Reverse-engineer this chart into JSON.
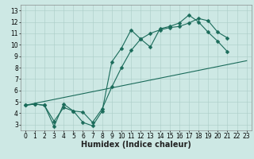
{
  "xlabel": "Humidex (Indice chaleur)",
  "xlim": [
    -0.5,
    23.5
  ],
  "ylim": [
    2.5,
    13.5
  ],
  "xticks": [
    0,
    1,
    2,
    3,
    4,
    5,
    6,
    7,
    8,
    9,
    10,
    11,
    12,
    13,
    14,
    15,
    16,
    17,
    18,
    19,
    20,
    21,
    22,
    23
  ],
  "yticks": [
    3,
    4,
    5,
    6,
    7,
    8,
    9,
    10,
    11,
    12,
    13
  ],
  "bg_color": "#cde8e4",
  "grid_color": "#aaccc7",
  "line_color": "#1a6b5a",
  "line1_x": [
    0,
    1,
    2,
    3,
    4,
    5,
    6,
    7,
    8,
    9,
    10,
    11,
    12,
    13,
    14,
    15,
    16,
    17,
    18,
    19,
    20,
    21,
    22
  ],
  "line1_y": [
    4.7,
    4.8,
    4.7,
    2.85,
    4.8,
    4.2,
    3.2,
    2.9,
    4.2,
    8.5,
    9.7,
    11.3,
    10.5,
    9.8,
    11.4,
    11.6,
    11.9,
    12.6,
    12.0,
    11.1,
    10.3,
    9.4,
    null
  ],
  "line2_x": [
    0,
    1,
    2,
    3,
    4,
    5,
    6,
    7,
    8,
    9,
    10,
    11,
    12,
    13,
    14,
    15,
    16,
    17,
    18,
    19,
    20,
    21,
    22
  ],
  "line2_y": [
    4.7,
    4.8,
    4.7,
    3.3,
    4.5,
    4.2,
    4.1,
    3.2,
    4.4,
    6.3,
    8.0,
    9.5,
    10.5,
    11.0,
    11.3,
    11.5,
    11.6,
    11.9,
    12.3,
    12.1,
    11.1,
    10.6,
    null
  ],
  "line3_x": [
    0,
    23
  ],
  "line3_y": [
    4.7,
    8.6
  ],
  "font_size_ticks": 5.5,
  "font_size_label": 7.0,
  "marker_size": 2.5,
  "line_width": 0.8
}
